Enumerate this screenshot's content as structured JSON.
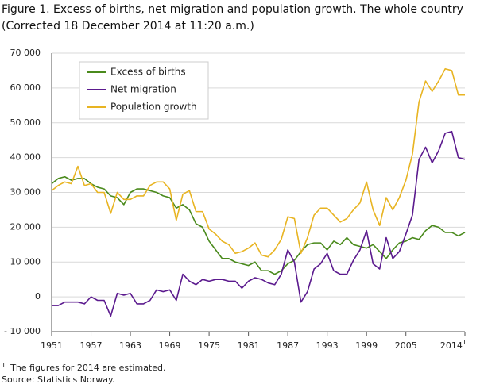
{
  "chart_data": {
    "type": "line",
    "title": "Figure 1. Excess of births, net migration and population growth. The whole country",
    "subtitle": "(Corrected 18 December 2014 at 11:20 a.m.)",
    "x": [
      1951,
      1952,
      1953,
      1954,
      1955,
      1956,
      1957,
      1958,
      1959,
      1960,
      1961,
      1962,
      1963,
      1964,
      1965,
      1966,
      1967,
      1968,
      1969,
      1970,
      1971,
      1972,
      1973,
      1974,
      1975,
      1976,
      1977,
      1978,
      1979,
      1980,
      1981,
      1982,
      1983,
      1984,
      1985,
      1986,
      1987,
      1988,
      1989,
      1990,
      1991,
      1992,
      1993,
      1994,
      1995,
      1996,
      1997,
      1998,
      1999,
      2000,
      2001,
      2002,
      2003,
      2004,
      2005,
      2006,
      2007,
      2008,
      2009,
      2010,
      2011,
      2012,
      2013,
      2014
    ],
    "series": [
      {
        "name": "Excess of births",
        "color": "#4a8a1c",
        "values": [
          32500,
          34000,
          34500,
          33500,
          34000,
          34000,
          32500,
          31500,
          31000,
          29000,
          28500,
          26500,
          30000,
          31000,
          31000,
          30500,
          30000,
          29000,
          28500,
          25500,
          26500,
          25000,
          21000,
          20000,
          16000,
          13500,
          11000,
          11000,
          10000,
          9500,
          9000,
          10000,
          7500,
          7500,
          6500,
          7500,
          9500,
          10500,
          13000,
          15000,
          15500,
          15500,
          13500,
          16000,
          15000,
          17000,
          15000,
          14500,
          14000,
          15000,
          13000,
          11000,
          13500,
          15500,
          16000,
          17000,
          16500,
          19000,
          20500,
          20000,
          18500,
          18500,
          17500,
          18500
        ]
      },
      {
        "name": "Net migration",
        "color": "#5b1a8e",
        "values": [
          -2500,
          -2500,
          -1500,
          -1500,
          -1500,
          -2000,
          0,
          -1000,
          -1000,
          -5500,
          1000,
          500,
          1000,
          -2000,
          -2000,
          -1000,
          2000,
          1500,
          2000,
          -1000,
          6500,
          4500,
          3500,
          5000,
          4500,
          5000,
          5000,
          4500,
          4500,
          2500,
          4500,
          5500,
          5000,
          4000,
          3500,
          6500,
          13500,
          10000,
          -1500,
          1500,
          8000,
          9500,
          12500,
          7500,
          6500,
          6500,
          10500,
          13500,
          19000,
          9500,
          8000,
          17000,
          11000,
          13000,
          18000,
          23500,
          39500,
          43000,
          38500,
          42000,
          47000,
          47500,
          40000,
          39500
        ]
      },
      {
        "name": "Population growth",
        "color": "#e8b422",
        "values": [
          30500,
          32000,
          33000,
          32500,
          37500,
          32000,
          32500,
          30000,
          30000,
          24000,
          30000,
          28000,
          28000,
          29000,
          29000,
          32000,
          33000,
          33000,
          31000,
          22000,
          29500,
          30500,
          24500,
          24500,
          19500,
          18000,
          16000,
          15000,
          12500,
          13000,
          14000,
          15500,
          12000,
          11500,
          13500,
          16500,
          23000,
          22500,
          12500,
          17000,
          23500,
          25500,
          25500,
          23500,
          21500,
          22500,
          25000,
          27000,
          33000,
          25000,
          20500,
          28500,
          25000,
          28500,
          33500,
          41000,
          56000,
          62000,
          59000,
          62000,
          65500,
          65000,
          58000,
          58000
        ]
      }
    ],
    "xlim": [
      1951,
      2014
    ],
    "xticks": [
      1951,
      1957,
      1963,
      1969,
      1975,
      1981,
      1987,
      1993,
      1999,
      2005,
      {
        "value": 2014,
        "label": "2014"
      }
    ],
    "ylim": [
      -10000,
      70000
    ],
    "yticks": [
      {
        "value": -10000,
        "label": "- 10 000"
      },
      0,
      {
        "value": 10000,
        "label": "10 000"
      },
      {
        "value": 20000,
        "label": "20 000"
      },
      {
        "value": 30000,
        "label": "30 000"
      },
      {
        "value": 40000,
        "label": "40 000"
      },
      {
        "value": 50000,
        "label": "50 000"
      },
      {
        "value": 60000,
        "label": "60 000"
      },
      {
        "value": 70000,
        "label": "70 000"
      }
    ],
    "grid": true,
    "legend": "upper left",
    "footnote": {
      "mark": "1",
      "text": "The figures for 2014 are estimated."
    },
    "source": "Source: Statistics Norway."
  }
}
